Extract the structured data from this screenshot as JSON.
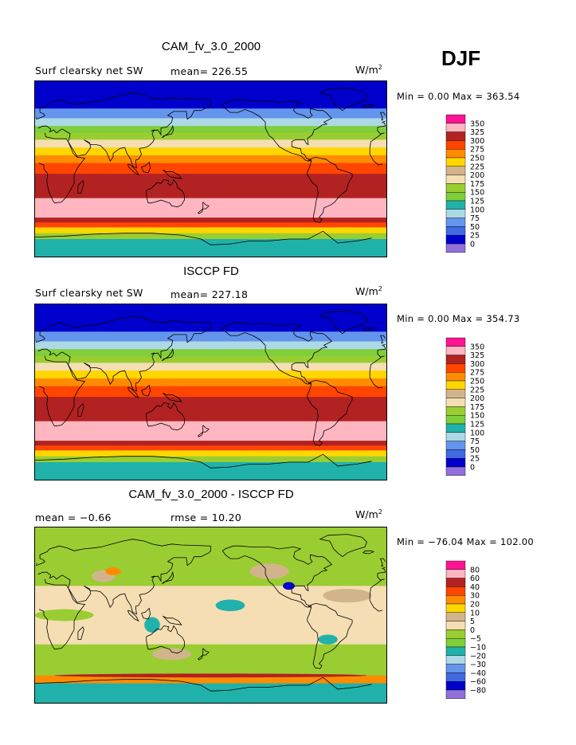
{
  "season": "DJF",
  "panels": [
    {
      "title": "CAM_fv_3.0_2000",
      "variable": "Surf clearsky net SW",
      "stat1": "mean= 226.55",
      "stat2": "",
      "units": "W/m",
      "units_exp": "2",
      "minmax": "Min =   0.00 Max = 363.54"
    },
    {
      "title": "ISCCP FD",
      "variable": "Surf clearsky net SW",
      "stat1": "mean= 227.18",
      "stat2": "",
      "units": "W/m",
      "units_exp": "2",
      "minmax": "Min =   0.00 Max = 354.73"
    },
    {
      "title": "CAM_fv_3.0_2000 - ISCCP FD",
      "variable": "",
      "stat1": "mean =  −0.66",
      "stat2": "rmse =  10.20",
      "units": "W/m",
      "units_exp": "2",
      "minmax": "Min = −76.04 Max = 102.00"
    }
  ],
  "chart_data": [
    {
      "type": "heatmap",
      "title": "CAM_fv_3.0_2000",
      "subtitle": "Surf clearsky net SW",
      "units": "W/m2",
      "mean": 226.55,
      "min": 0.0,
      "max": 363.54,
      "colorbar": {
        "levels": [
          "350",
          "325",
          "300",
          "275",
          "250",
          "225",
          "200",
          "175",
          "150",
          "125",
          "100",
          "75",
          "50",
          "25",
          "0"
        ],
        "colors": [
          "#ff1493",
          "#ffb6c1",
          "#b22222",
          "#ff4500",
          "#ff8c00",
          "#ffd700",
          "#d2b48c",
          "#f5deb3",
          "#9acd32",
          "#7fce3a",
          "#20b2aa",
          "#add8e6",
          "#6495ed",
          "#4169e1",
          "#0000cd",
          "#9370db"
        ]
      },
      "zonal_bands": [
        {
          "lat": 90,
          "value": 12
        },
        {
          "lat": 75,
          "value": 20
        },
        {
          "lat": 62,
          "value": 55
        },
        {
          "lat": 52,
          "value": 90
        },
        {
          "lat": 44,
          "value": 130
        },
        {
          "lat": 37,
          "value": 160
        },
        {
          "lat": 30,
          "value": 190
        },
        {
          "lat": 22,
          "value": 235
        },
        {
          "lat": 14,
          "value": 265
        },
        {
          "lat": 6,
          "value": 290
        },
        {
          "lat": -5,
          "value": 310
        },
        {
          "lat": -30,
          "value": 330
        },
        {
          "lat": -50,
          "value": 315
        },
        {
          "lat": -55,
          "value": 290
        },
        {
          "lat": -60,
          "value": 240
        },
        {
          "lat": -66,
          "value": 160
        },
        {
          "lat": -72,
          "value": 100
        },
        {
          "lat": -90,
          "value": 90
        }
      ]
    },
    {
      "type": "heatmap",
      "title": "ISCCP FD",
      "subtitle": "Surf clearsky net SW",
      "units": "W/m2",
      "mean": 227.18,
      "min": 0.0,
      "max": 354.73,
      "colorbar": {
        "levels": [
          "350",
          "325",
          "300",
          "275",
          "250",
          "225",
          "200",
          "175",
          "150",
          "125",
          "100",
          "75",
          "50",
          "25",
          "0"
        ],
        "colors": [
          "#ff1493",
          "#ffb6c1",
          "#b22222",
          "#ff4500",
          "#ff8c00",
          "#ffd700",
          "#d2b48c",
          "#f5deb3",
          "#9acd32",
          "#7fce3a",
          "#20b2aa",
          "#add8e6",
          "#6495ed",
          "#4169e1",
          "#0000cd",
          "#9370db"
        ]
      },
      "zonal_bands": [
        {
          "lat": 90,
          "value": 12
        },
        {
          "lat": 75,
          "value": 20
        },
        {
          "lat": 62,
          "value": 55
        },
        {
          "lat": 52,
          "value": 90
        },
        {
          "lat": 44,
          "value": 130
        },
        {
          "lat": 37,
          "value": 160
        },
        {
          "lat": 30,
          "value": 190
        },
        {
          "lat": 22,
          "value": 235
        },
        {
          "lat": 14,
          "value": 265
        },
        {
          "lat": 6,
          "value": 290
        },
        {
          "lat": -5,
          "value": 310
        },
        {
          "lat": -30,
          "value": 330
        },
        {
          "lat": -50,
          "value": 315
        },
        {
          "lat": -55,
          "value": 290
        },
        {
          "lat": -60,
          "value": 240
        },
        {
          "lat": -66,
          "value": 160
        },
        {
          "lat": -72,
          "value": 100
        },
        {
          "lat": -90,
          "value": 90
        }
      ]
    },
    {
      "type": "heatmap",
      "title": "CAM_fv_3.0_2000 - ISCCP FD",
      "units": "W/m2",
      "mean": -0.66,
      "rmse": 10.2,
      "min": -76.04,
      "max": 102.0,
      "colorbar": {
        "levels": [
          "80",
          "60",
          "40",
          "30",
          "20",
          "10",
          "5",
          "0",
          "−5",
          "−10",
          "−20",
          "−30",
          "−40",
          "−60",
          "−80"
        ],
        "colors": [
          "#ff1493",
          "#ffb6c1",
          "#b22222",
          "#ff4500",
          "#ff8c00",
          "#ffd700",
          "#d2b48c",
          "#f5deb3",
          "#9acd32",
          "#7fce3a",
          "#20b2aa",
          "#add8e6",
          "#6495ed",
          "#4169e1",
          "#0000cd",
          "#9370db"
        ]
      },
      "zonal_bands": [
        {
          "lat": 90,
          "value": -3
        },
        {
          "lat": 30,
          "value": 2
        },
        {
          "lat": -30,
          "value": -3
        },
        {
          "lat": -62,
          "value": 20
        },
        {
          "lat": -70,
          "value": -12
        },
        {
          "lat": -90,
          "value": -8
        }
      ]
    }
  ]
}
